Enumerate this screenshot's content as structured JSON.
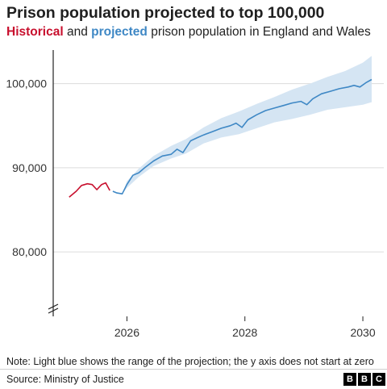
{
  "header": {
    "title": "Prison population projected to top 100,000",
    "subtitle_hist": "Historical",
    "subtitle_mid": " and ",
    "subtitle_proj": "projected",
    "subtitle_rest": " prison population in England and Wales"
  },
  "footer": {
    "note": "Note: Light blue shows the range of the projection; the y axis does not start at zero",
    "source": "Source: Ministry of Justice",
    "logo_letters": [
      "B",
      "B",
      "C"
    ]
  },
  "colors": {
    "historical": "#c8102e",
    "projected": "#3f88c5",
    "range": "#d5e5f3",
    "grid": "#dcdcdc",
    "axis": "#222222"
  },
  "chart_data": {
    "type": "line",
    "title": "Prison population projected to top 100,000",
    "xlabel": "",
    "ylabel": "",
    "xlim": [
      2024.75,
      2030.3
    ],
    "ylim": [
      73000,
      104000
    ],
    "x_ticks": [
      2026,
      2028,
      2030
    ],
    "x_tick_labels": [
      "2026",
      "2028",
      "2030"
    ],
    "y_ticks": [
      80000,
      90000,
      100000
    ],
    "y_tick_labels": [
      "80,000",
      "90,000",
      "100,000"
    ],
    "y_axis_break": true,
    "grid": "horizontal",
    "series": [
      {
        "name": "Historical",
        "x": [
          2025.02,
          2025.14,
          2025.23,
          2025.33,
          2025.41,
          2025.49,
          2025.57,
          2025.64,
          2025.71
        ],
        "values": [
          86500,
          87200,
          87900,
          88100,
          88000,
          87400,
          88000,
          88200,
          87300
        ]
      },
      {
        "name": "Projected",
        "x": [
          2025.76,
          2025.83,
          2025.92,
          2026.0,
          2026.1,
          2026.2,
          2026.3,
          2026.45,
          2026.6,
          2026.75,
          2026.85,
          2026.95,
          2027.08,
          2027.2,
          2027.3,
          2027.45,
          2027.6,
          2027.75,
          2027.85,
          2027.95,
          2028.05,
          2028.2,
          2028.35,
          2028.5,
          2028.65,
          2028.8,
          2028.95,
          2029.05,
          2029.15,
          2029.3,
          2029.45,
          2029.6,
          2029.75,
          2029.85,
          2029.95,
          2030.05,
          2030.15
        ],
        "values": [
          87200,
          87000,
          86900,
          88000,
          89100,
          89400,
          90000,
          90800,
          91400,
          91600,
          92200,
          91800,
          93200,
          93600,
          93900,
          94300,
          94700,
          95000,
          95300,
          94800,
          95700,
          96300,
          96800,
          97100,
          97400,
          97700,
          97900,
          97500,
          98200,
          98800,
          99100,
          99400,
          99600,
          99800,
          99600,
          100100,
          100500
        ]
      }
    ],
    "range_band": {
      "x": [
        2025.76,
        2025.92,
        2026.0,
        2026.2,
        2026.45,
        2026.75,
        2027.0,
        2027.3,
        2027.6,
        2027.9,
        2028.2,
        2028.5,
        2028.8,
        2029.1,
        2029.4,
        2029.7,
        2030.0,
        2030.15
      ],
      "low": [
        87200,
        86900,
        87600,
        88900,
        90200,
        91100,
        91700,
        92900,
        93600,
        94000,
        94700,
        95400,
        95800,
        96300,
        96900,
        97200,
        97500,
        97800
      ],
      "high": [
        87200,
        86900,
        88400,
        89900,
        91400,
        92600,
        93400,
        94800,
        95900,
        96700,
        97600,
        98400,
        99300,
        100000,
        100800,
        101500,
        102500,
        103300
      ]
    }
  }
}
